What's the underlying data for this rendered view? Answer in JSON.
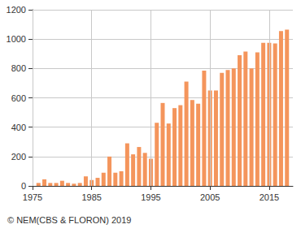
{
  "chart_data": {
    "type": "bar",
    "source": "© NEM(CBS & FLORON) 2019",
    "x": [
      1976,
      1977,
      1978,
      1979,
      1980,
      1981,
      1982,
      1983,
      1984,
      1985,
      1986,
      1987,
      1988,
      1989,
      1990,
      1991,
      1992,
      1993,
      1994,
      1995,
      1996,
      1997,
      1998,
      1999,
      2000,
      2001,
      2002,
      2003,
      2004,
      2005,
      2006,
      2007,
      2008,
      2009,
      2010,
      2011,
      2012,
      2013,
      2014,
      2015,
      2016,
      2017,
      2018
    ],
    "values": [
      20,
      45,
      20,
      20,
      35,
      20,
      15,
      20,
      65,
      40,
      55,
      90,
      200,
      90,
      100,
      290,
      215,
      265,
      225,
      185,
      430,
      565,
      425,
      530,
      550,
      710,
      585,
      560,
      785,
      650,
      650,
      770,
      790,
      800,
      890,
      915,
      800,
      910,
      975,
      975,
      970,
      1055,
      1065
    ],
    "color": "#f4955c",
    "xlim": [
      1975,
      2019
    ],
    "xticks": [
      1975,
      1985,
      1995,
      2005,
      2015
    ],
    "ylim": [
      0,
      1200
    ],
    "yticks": [
      0,
      200,
      400,
      600,
      800,
      1000,
      1200
    ],
    "grid": true
  }
}
